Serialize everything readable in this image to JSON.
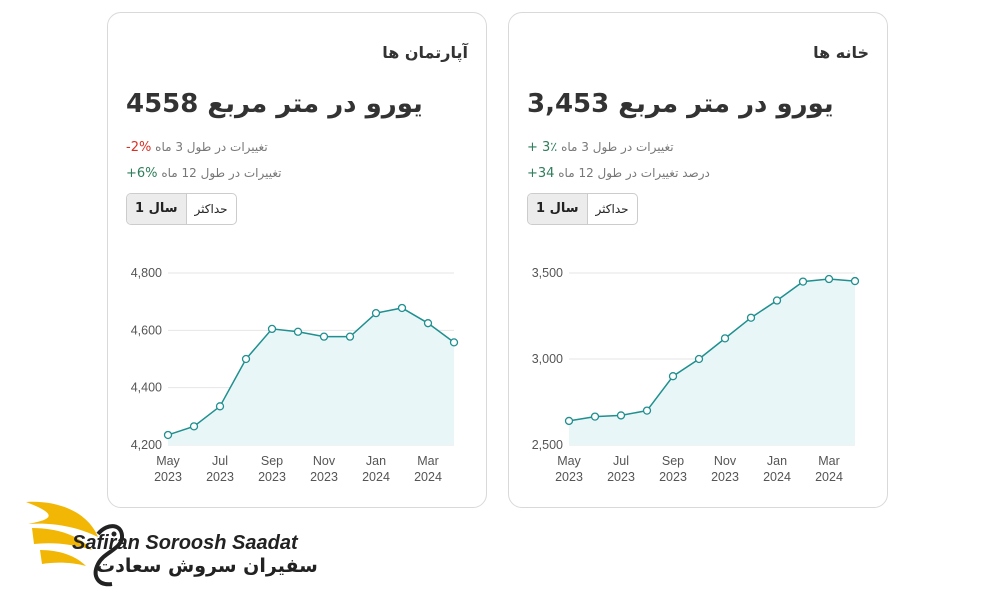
{
  "cards": [
    {
      "title": "آپارتمان ها",
      "price_text": "یورو در متر مربع 4558",
      "change3_label": "تغییرات در طول 3 ماه",
      "change3_value": "-2%",
      "change12_label": "تغییرات در طول 12 ماه",
      "change12_value": "+6%",
      "toggle_active": "1 سال",
      "toggle_other": "حداکثر"
    },
    {
      "title": "خانه ها",
      "price_text": "یورو در متر مربع 3,453",
      "change3_label": "تغییرات در طول 3 ماه",
      "change3_value": "+ 3٪",
      "change12_label": "درصد تغییرات در طول 12 ماه",
      "change12_value": "+34",
      "toggle_active": "1 سال",
      "toggle_other": "حداکثر"
    }
  ],
  "chart_data": [
    {
      "type": "area",
      "x": [
        "May 2023",
        "Jun 2023",
        "Jul 2023",
        "Aug 2023",
        "Sep 2023",
        "Oct 2023",
        "Nov 2023",
        "Dec 2023",
        "Jan 2024",
        "Feb 2024",
        "Mar 2024",
        "Apr 2024"
      ],
      "tick_labels": [
        [
          "May",
          "2023"
        ],
        [
          "Jul",
          "2023"
        ],
        [
          "Sep",
          "2023"
        ],
        [
          "Nov",
          "2023"
        ],
        [
          "Jan",
          "2024"
        ],
        [
          "Mar",
          "2024"
        ]
      ],
      "values": [
        4235,
        4265,
        4335,
        4500,
        4605,
        4595,
        4578,
        4578,
        4660,
        4678,
        4625,
        4558
      ],
      "yticks": [
        "4,200",
        "4,400",
        "4,600",
        "4,800"
      ],
      "ylim": [
        4200,
        4800
      ],
      "grid": true,
      "color": "#1f8f8f"
    },
    {
      "type": "area",
      "x": [
        "May 2023",
        "Jun 2023",
        "Jul 2023",
        "Aug 2023",
        "Sep 2023",
        "Oct 2023",
        "Nov 2023",
        "Dec 2023",
        "Jan 2024",
        "Feb 2024",
        "Mar 2024",
        "Apr 2024"
      ],
      "tick_labels": [
        [
          "May",
          "2023"
        ],
        [
          "Jul",
          "2023"
        ],
        [
          "Sep",
          "2023"
        ],
        [
          "Nov",
          "2023"
        ],
        [
          "Jan",
          "2024"
        ],
        [
          "Mar",
          "2024"
        ]
      ],
      "values": [
        2640,
        2665,
        2672,
        2700,
        2900,
        3000,
        3120,
        3240,
        3340,
        3450,
        3465,
        3453
      ],
      "yticks": [
        "2,500",
        "3,000",
        "3,500"
      ],
      "ylim": [
        2500,
        3500
      ],
      "grid": true,
      "color": "#1f8f8f"
    }
  ],
  "brand": {
    "name_en": "Safiran Soroosh Saadat",
    "name_fa": "سفیران سروش سعادت"
  }
}
